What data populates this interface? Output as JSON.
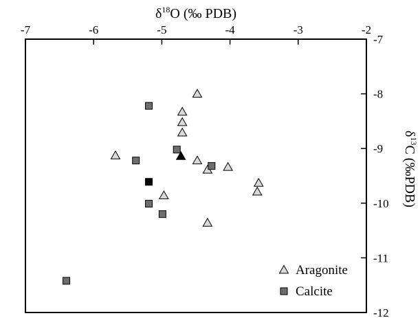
{
  "chart_data": {
    "type": "scatter",
    "x_axis": {
      "label_prefix": "δ",
      "label_sup": "18",
      "label_suffix": "O (‰ PDB)",
      "position": "top",
      "range": [
        -7,
        -2
      ],
      "ticks": [
        -7,
        -6,
        -5,
        -4,
        -3,
        -2
      ],
      "tick_labels": [
        "-7",
        "-6",
        "-5",
        "-4",
        "-3",
        "-2"
      ]
    },
    "y_axis": {
      "label_prefix": "δ",
      "label_sup": "13",
      "label_suffix": "C (‰PDB)",
      "position": "right",
      "range": [
        -12,
        -7
      ],
      "ticks": [
        -7,
        -8,
        -9,
        -10,
        -11,
        -12
      ],
      "tick_labels": [
        "-7",
        "-8",
        "-9",
        "-10",
        "-11",
        "-12"
      ]
    },
    "grid": false,
    "legend": {
      "placement": "bottom-right",
      "entries": [
        {
          "label": "Aragonite",
          "marker": "triangle",
          "fill": "#d9d9d9"
        },
        {
          "label": "Calcite",
          "marker": "square",
          "fill": "#6e6e6e"
        }
      ]
    },
    "series": [
      {
        "name": "Aragonite",
        "marker": "triangle",
        "color": "#d9d9d9",
        "points": [
          {
            "x": -4.48,
            "y": -8.0
          },
          {
            "x": -4.7,
            "y": -8.33
          },
          {
            "x": -4.7,
            "y": -8.52
          },
          {
            "x": -4.7,
            "y": -8.71
          },
          {
            "x": -5.68,
            "y": -9.13
          },
          {
            "x": -4.48,
            "y": -9.22
          },
          {
            "x": -4.33,
            "y": -9.39
          },
          {
            "x": -4.03,
            "y": -9.34
          },
          {
            "x": -3.58,
            "y": -9.63
          },
          {
            "x": -3.6,
            "y": -9.79
          },
          {
            "x": -4.97,
            "y": -9.86
          },
          {
            "x": -4.33,
            "y": -10.36
          }
        ]
      },
      {
        "name": "Calcite",
        "marker": "square",
        "color": "#6e6e6e",
        "points": [
          {
            "x": -5.19,
            "y": -8.22
          },
          {
            "x": -4.78,
            "y": -9.02
          },
          {
            "x": -5.38,
            "y": -9.22
          },
          {
            "x": -4.27,
            "y": -9.32
          },
          {
            "x": -5.19,
            "y": -10.01
          },
          {
            "x": -4.99,
            "y": -10.2
          },
          {
            "x": -6.4,
            "y": -11.42
          }
        ]
      }
    ],
    "highlighted_points": [
      {
        "series": "Aragonite",
        "marker": "triangle",
        "color": "#000000",
        "x": -4.72,
        "y": -9.14
      },
      {
        "series": "Calcite",
        "marker": "square",
        "color": "#000000",
        "x": -5.19,
        "y": -9.61
      }
    ]
  }
}
